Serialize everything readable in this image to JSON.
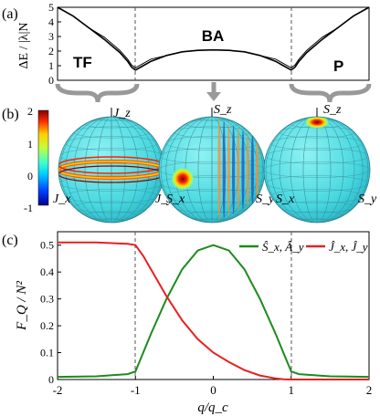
{
  "panel_labels": {
    "a": "(a)",
    "b": "(b)",
    "c": "(c)"
  },
  "panel_a": {
    "ylabel": "ΔE / |λ|N",
    "yticks": [
      "0",
      "1",
      "2",
      "3",
      "4",
      "5"
    ],
    "phase_labels": {
      "tf": "TF",
      "ba": "BA",
      "p": "P"
    }
  },
  "panel_b": {
    "colorbar_ticks": [
      "2",
      "1",
      "0",
      "-1"
    ],
    "sphere1": {
      "top": "J_z",
      "left": "J_x",
      "right": "J_y"
    },
    "sphere2": {
      "top": "S_z",
      "left": "S_x",
      "right": "S_y"
    },
    "sphere3": {
      "top": "S_z",
      "left": "S_x",
      "right": "S_y"
    }
  },
  "panel_c": {
    "ylabel": "F_Q / N²",
    "xlabel": "q/q_c",
    "yticks": [
      "0",
      "0.1",
      "0.2",
      "0.3",
      "0.4",
      "0.5"
    ],
    "xticks": [
      "-2",
      "-1",
      "0",
      "1",
      "2"
    ],
    "legend": [
      {
        "label": "Ŝ_x, Â_y",
        "color": "#1e8a1e"
      },
      {
        "label": "Ĵ_x, Ĵ_y",
        "color": "#e82020"
      }
    ]
  },
  "chart_data": [
    {
      "type": "line",
      "xlim": [
        -2,
        2
      ],
      "ylim": [
        0,
        5
      ],
      "ylabel": "ΔE / |λ|N",
      "xlabel": "",
      "annotations": [
        "TF",
        "BA",
        "P"
      ],
      "series": [
        {
          "x": [
            -2,
            -1.8,
            -1.6,
            -1.4,
            -1.2,
            -1.1,
            -1.05,
            -1.0,
            -0.9,
            -0.8,
            -0.6,
            -0.4,
            -0.2,
            0,
            0.2,
            0.4,
            0.6,
            0.8,
            0.9,
            1.0,
            1.05,
            1.1,
            1.2,
            1.4,
            1.6,
            1.8,
            2
          ],
          "values": [
            5.0,
            4.4,
            3.6,
            2.8,
            1.9,
            1.3,
            0.9,
            0.7,
            1.0,
            1.3,
            1.7,
            1.95,
            2.05,
            2.08,
            2.05,
            1.95,
            1.7,
            1.3,
            1.0,
            0.7,
            0.9,
            1.3,
            1.9,
            2.8,
            3.6,
            4.4,
            5.0
          ]
        }
      ]
    },
    {
      "type": "line",
      "xlim": [
        -2,
        2
      ],
      "ylim": [
        0,
        0.55
      ],
      "xlabel": "q/q_c",
      "ylabel": "F_Q / N²",
      "grid": false,
      "legend_position": "top-right",
      "series": [
        {
          "name": "Ŝ_x, Â_y",
          "color": "#1e8a1e",
          "x": [
            -2,
            -1.5,
            -1.1,
            -1.0,
            -0.9,
            -0.8,
            -0.6,
            -0.4,
            -0.2,
            0,
            0.2,
            0.4,
            0.6,
            0.8,
            0.9,
            1.0,
            1.1,
            1.5,
            2
          ],
          "values": [
            0.01,
            0.012,
            0.02,
            0.03,
            0.1,
            0.17,
            0.3,
            0.41,
            0.48,
            0.5,
            0.48,
            0.41,
            0.3,
            0.17,
            0.1,
            0.03,
            0.02,
            0.012,
            0.01
          ]
        },
        {
          "name": "Ĵ_x, Ĵ_y",
          "color": "#e82020",
          "x": [
            -2,
            -1.5,
            -1.1,
            -1.0,
            -0.9,
            -0.8,
            -0.6,
            -0.4,
            -0.2,
            0,
            0.2,
            0.4,
            0.6,
            0.8,
            0.9,
            1.0,
            1.5,
            2
          ],
          "values": [
            0.51,
            0.51,
            0.505,
            0.5,
            0.46,
            0.41,
            0.31,
            0.22,
            0.15,
            0.1,
            0.065,
            0.035,
            0.015,
            0.004,
            0.001,
            0,
            0,
            0
          ]
        }
      ]
    }
  ]
}
